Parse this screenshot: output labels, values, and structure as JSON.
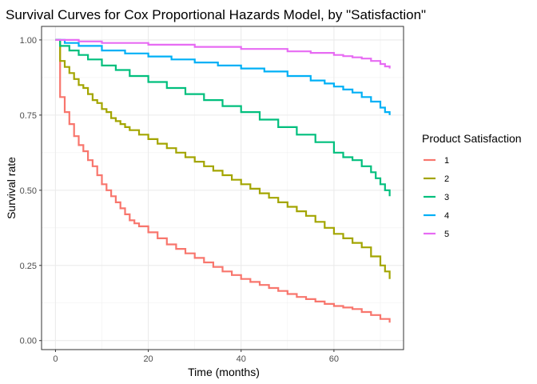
{
  "chart_data": {
    "type": "line",
    "step": true,
    "title": "Survival Curves for Cox Proportional Hazards Model, by \"Satisfaction\"",
    "xlabel": "Time (months)",
    "ylabel": "Survival rate",
    "xlim": [
      -3,
      75
    ],
    "ylim": [
      -0.03,
      1.045
    ],
    "x_ticks": [
      0,
      20,
      40,
      60
    ],
    "x_tick_labels": [
      "0",
      "20",
      "40",
      "60"
    ],
    "y_ticks": [
      0,
      0.25,
      0.5,
      0.75,
      1.0
    ],
    "y_tick_labels": [
      "0.00",
      "0.25",
      "0.50",
      "0.75",
      "1.00"
    ],
    "grid": true,
    "legend": {
      "title": "Product Satisfaction",
      "position": "right"
    },
    "series": [
      {
        "name": "1",
        "color": "#F8766D",
        "x": [
          0,
          1,
          2,
          3,
          4,
          5,
          6,
          7,
          8,
          9,
          10,
          11,
          12,
          13,
          14,
          15,
          16,
          17,
          18,
          20,
          22,
          24,
          26,
          28,
          30,
          32,
          34,
          36,
          38,
          40,
          42,
          44,
          46,
          48,
          50,
          52,
          54,
          56,
          58,
          60,
          62,
          64,
          66,
          68,
          70,
          72
        ],
        "y": [
          1.0,
          0.81,
          0.76,
          0.72,
          0.68,
          0.65,
          0.63,
          0.6,
          0.58,
          0.55,
          0.52,
          0.5,
          0.48,
          0.46,
          0.44,
          0.42,
          0.4,
          0.39,
          0.38,
          0.36,
          0.34,
          0.32,
          0.305,
          0.29,
          0.275,
          0.26,
          0.245,
          0.23,
          0.218,
          0.205,
          0.195,
          0.185,
          0.175,
          0.165,
          0.155,
          0.145,
          0.138,
          0.13,
          0.122,
          0.115,
          0.11,
          0.105,
          0.095,
          0.085,
          0.072,
          0.06
        ]
      },
      {
        "name": "2",
        "color": "#A3A500",
        "x": [
          0,
          1,
          2,
          3,
          4,
          5,
          6,
          7,
          8,
          9,
          10,
          11,
          12,
          13,
          14,
          15,
          16,
          18,
          20,
          22,
          24,
          26,
          28,
          30,
          32,
          34,
          36,
          38,
          40,
          42,
          44,
          46,
          48,
          50,
          52,
          54,
          56,
          58,
          60,
          62,
          64,
          66,
          68,
          70,
          71,
          72
        ],
        "y": [
          1.0,
          0.93,
          0.91,
          0.89,
          0.87,
          0.85,
          0.84,
          0.82,
          0.8,
          0.79,
          0.77,
          0.76,
          0.74,
          0.73,
          0.72,
          0.71,
          0.7,
          0.685,
          0.67,
          0.655,
          0.64,
          0.625,
          0.61,
          0.595,
          0.58,
          0.565,
          0.55,
          0.535,
          0.52,
          0.505,
          0.49,
          0.475,
          0.46,
          0.445,
          0.43,
          0.415,
          0.395,
          0.375,
          0.355,
          0.34,
          0.325,
          0.31,
          0.28,
          0.25,
          0.23,
          0.205
        ]
      },
      {
        "name": "3",
        "color": "#00BF7D",
        "x": [
          0,
          1,
          3,
          5,
          7,
          10,
          13,
          16,
          20,
          24,
          28,
          32,
          36,
          40,
          44,
          48,
          52,
          56,
          60,
          62,
          64,
          66,
          68,
          69,
          70,
          71,
          72
        ],
        "y": [
          1.0,
          0.98,
          0.965,
          0.95,
          0.935,
          0.915,
          0.9,
          0.88,
          0.86,
          0.84,
          0.82,
          0.8,
          0.78,
          0.76,
          0.735,
          0.71,
          0.685,
          0.66,
          0.625,
          0.61,
          0.6,
          0.58,
          0.56,
          0.54,
          0.52,
          0.5,
          0.48
        ]
      },
      {
        "name": "4",
        "color": "#00B0F6",
        "x": [
          0,
          2,
          5,
          10,
          15,
          20,
          25,
          30,
          35,
          40,
          45,
          50,
          55,
          58,
          60,
          62,
          64,
          66,
          68,
          70,
          71,
          72
        ],
        "y": [
          1.0,
          0.99,
          0.98,
          0.965,
          0.955,
          0.945,
          0.935,
          0.925,
          0.915,
          0.905,
          0.895,
          0.88,
          0.865,
          0.855,
          0.845,
          0.835,
          0.825,
          0.81,
          0.795,
          0.775,
          0.76,
          0.75
        ]
      },
      {
        "name": "5",
        "color": "#E76BF3",
        "x": [
          0,
          5,
          10,
          20,
          30,
          40,
          50,
          55,
          60,
          62,
          64,
          66,
          68,
          70,
          71,
          72
        ],
        "y": [
          1.0,
          0.995,
          0.99,
          0.984,
          0.977,
          0.97,
          0.962,
          0.957,
          0.95,
          0.946,
          0.942,
          0.938,
          0.93,
          0.92,
          0.912,
          0.905
        ]
      }
    ]
  }
}
